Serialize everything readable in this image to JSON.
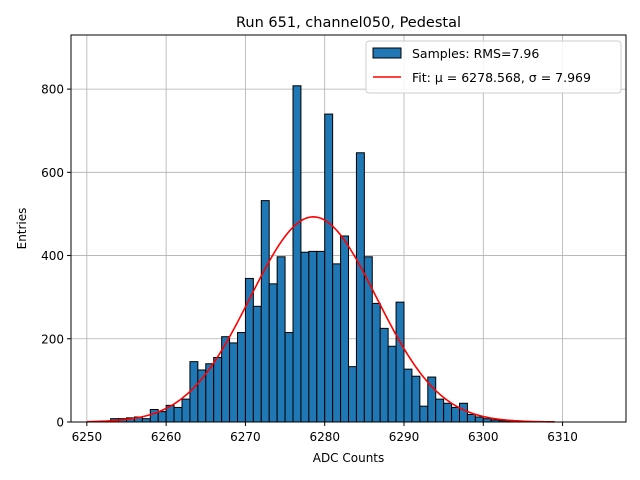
{
  "chart_data": {
    "type": "bar",
    "title": "Run 651, channel050, Pedestal",
    "xlabel": "ADC Counts",
    "ylabel": "Entries",
    "xlim": [
      6248,
      6318
    ],
    "ylim": [
      0,
      930
    ],
    "xticks": [
      6250,
      6260,
      6270,
      6280,
      6290,
      6300,
      6310
    ],
    "yticks": [
      0,
      200,
      400,
      600,
      800
    ],
    "grid": true,
    "legend_position": "top-right",
    "bin_width": 1,
    "series": [
      {
        "name": "Samples: RMS=7.96",
        "kind": "histogram",
        "color": "#1f77b4",
        "edgecolor": "#000000",
        "bin_starts": [
          6253,
          6254,
          6255,
          6256,
          6257,
          6258,
          6259,
          6260,
          6261,
          6262,
          6263,
          6264,
          6265,
          6266,
          6267,
          6268,
          6269,
          6270,
          6271,
          6272,
          6273,
          6274,
          6275,
          6276,
          6277,
          6278,
          6279,
          6280,
          6281,
          6282,
          6283,
          6284,
          6285,
          6286,
          6287,
          6288,
          6289,
          6290,
          6291,
          6292,
          6293,
          6294,
          6295,
          6296,
          6297,
          6298,
          6299,
          6300,
          6301,
          6302,
          6303,
          6304
        ],
        "values": [
          8,
          8,
          10,
          12,
          8,
          30,
          25,
          40,
          35,
          55,
          145,
          125,
          140,
          155,
          205,
          190,
          215,
          345,
          278,
          532,
          332,
          397,
          215,
          808,
          408,
          410,
          410,
          740,
          380,
          447,
          133,
          647,
          397,
          285,
          225,
          182,
          288,
          127,
          110,
          38,
          108,
          55,
          45,
          35,
          45,
          18,
          12,
          8,
          5,
          3,
          2,
          1
        ]
      },
      {
        "name": "Fit: μ = 6278.568, σ = 7.969",
        "kind": "gaussian_fit",
        "color": "#ff0000",
        "mu": 6278.568,
        "sigma": 7.969,
        "amplitude": 493,
        "x_range": [
          6250,
          6309
        ]
      }
    ]
  }
}
